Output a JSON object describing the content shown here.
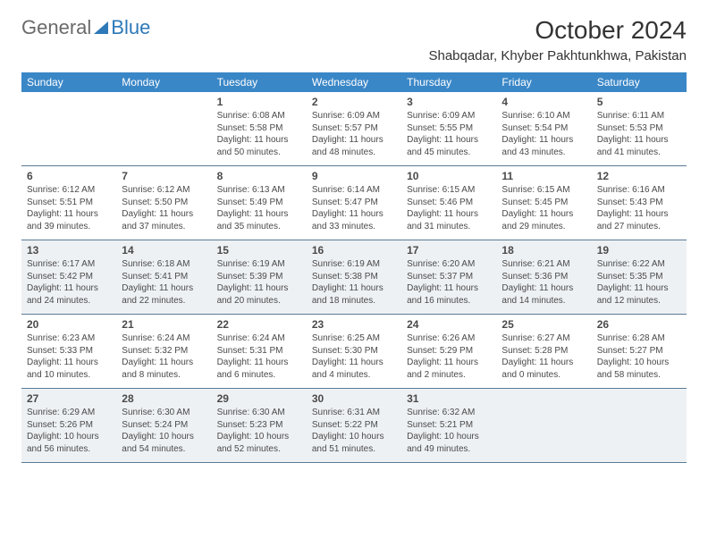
{
  "brand": {
    "part1": "General",
    "part2": "Blue"
  },
  "header": {
    "title": "October 2024",
    "location": "Shabqadar, Khyber Pakhtunkhwa, Pakistan"
  },
  "colors": {
    "header_bg": "#3a87c7",
    "header_text": "#ffffff",
    "border": "#5a7a95",
    "alt_row_bg": "#eef1f4",
    "text": "#4a4a4a",
    "brand_blue": "#2e79b8"
  },
  "day_headers": [
    "Sunday",
    "Monday",
    "Tuesday",
    "Wednesday",
    "Thursday",
    "Friday",
    "Saturday"
  ],
  "weeks": [
    {
      "alt": false,
      "cells": [
        null,
        null,
        {
          "n": "1",
          "sr": "Sunrise: 6:08 AM",
          "ss": "Sunset: 5:58 PM",
          "d1": "Daylight: 11 hours",
          "d2": "and 50 minutes."
        },
        {
          "n": "2",
          "sr": "Sunrise: 6:09 AM",
          "ss": "Sunset: 5:57 PM",
          "d1": "Daylight: 11 hours",
          "d2": "and 48 minutes."
        },
        {
          "n": "3",
          "sr": "Sunrise: 6:09 AM",
          "ss": "Sunset: 5:55 PM",
          "d1": "Daylight: 11 hours",
          "d2": "and 45 minutes."
        },
        {
          "n": "4",
          "sr": "Sunrise: 6:10 AM",
          "ss": "Sunset: 5:54 PM",
          "d1": "Daylight: 11 hours",
          "d2": "and 43 minutes."
        },
        {
          "n": "5",
          "sr": "Sunrise: 6:11 AM",
          "ss": "Sunset: 5:53 PM",
          "d1": "Daylight: 11 hours",
          "d2": "and 41 minutes."
        }
      ]
    },
    {
      "alt": false,
      "cells": [
        {
          "n": "6",
          "sr": "Sunrise: 6:12 AM",
          "ss": "Sunset: 5:51 PM",
          "d1": "Daylight: 11 hours",
          "d2": "and 39 minutes."
        },
        {
          "n": "7",
          "sr": "Sunrise: 6:12 AM",
          "ss": "Sunset: 5:50 PM",
          "d1": "Daylight: 11 hours",
          "d2": "and 37 minutes."
        },
        {
          "n": "8",
          "sr": "Sunrise: 6:13 AM",
          "ss": "Sunset: 5:49 PM",
          "d1": "Daylight: 11 hours",
          "d2": "and 35 minutes."
        },
        {
          "n": "9",
          "sr": "Sunrise: 6:14 AM",
          "ss": "Sunset: 5:47 PM",
          "d1": "Daylight: 11 hours",
          "d2": "and 33 minutes."
        },
        {
          "n": "10",
          "sr": "Sunrise: 6:15 AM",
          "ss": "Sunset: 5:46 PM",
          "d1": "Daylight: 11 hours",
          "d2": "and 31 minutes."
        },
        {
          "n": "11",
          "sr": "Sunrise: 6:15 AM",
          "ss": "Sunset: 5:45 PM",
          "d1": "Daylight: 11 hours",
          "d2": "and 29 minutes."
        },
        {
          "n": "12",
          "sr": "Sunrise: 6:16 AM",
          "ss": "Sunset: 5:43 PM",
          "d1": "Daylight: 11 hours",
          "d2": "and 27 minutes."
        }
      ]
    },
    {
      "alt": true,
      "cells": [
        {
          "n": "13",
          "sr": "Sunrise: 6:17 AM",
          "ss": "Sunset: 5:42 PM",
          "d1": "Daylight: 11 hours",
          "d2": "and 24 minutes."
        },
        {
          "n": "14",
          "sr": "Sunrise: 6:18 AM",
          "ss": "Sunset: 5:41 PM",
          "d1": "Daylight: 11 hours",
          "d2": "and 22 minutes."
        },
        {
          "n": "15",
          "sr": "Sunrise: 6:19 AM",
          "ss": "Sunset: 5:39 PM",
          "d1": "Daylight: 11 hours",
          "d2": "and 20 minutes."
        },
        {
          "n": "16",
          "sr": "Sunrise: 6:19 AM",
          "ss": "Sunset: 5:38 PM",
          "d1": "Daylight: 11 hours",
          "d2": "and 18 minutes."
        },
        {
          "n": "17",
          "sr": "Sunrise: 6:20 AM",
          "ss": "Sunset: 5:37 PM",
          "d1": "Daylight: 11 hours",
          "d2": "and 16 minutes."
        },
        {
          "n": "18",
          "sr": "Sunrise: 6:21 AM",
          "ss": "Sunset: 5:36 PM",
          "d1": "Daylight: 11 hours",
          "d2": "and 14 minutes."
        },
        {
          "n": "19",
          "sr": "Sunrise: 6:22 AM",
          "ss": "Sunset: 5:35 PM",
          "d1": "Daylight: 11 hours",
          "d2": "and 12 minutes."
        }
      ]
    },
    {
      "alt": false,
      "cells": [
        {
          "n": "20",
          "sr": "Sunrise: 6:23 AM",
          "ss": "Sunset: 5:33 PM",
          "d1": "Daylight: 11 hours",
          "d2": "and 10 minutes."
        },
        {
          "n": "21",
          "sr": "Sunrise: 6:24 AM",
          "ss": "Sunset: 5:32 PM",
          "d1": "Daylight: 11 hours",
          "d2": "and 8 minutes."
        },
        {
          "n": "22",
          "sr": "Sunrise: 6:24 AM",
          "ss": "Sunset: 5:31 PM",
          "d1": "Daylight: 11 hours",
          "d2": "and 6 minutes."
        },
        {
          "n": "23",
          "sr": "Sunrise: 6:25 AM",
          "ss": "Sunset: 5:30 PM",
          "d1": "Daylight: 11 hours",
          "d2": "and 4 minutes."
        },
        {
          "n": "24",
          "sr": "Sunrise: 6:26 AM",
          "ss": "Sunset: 5:29 PM",
          "d1": "Daylight: 11 hours",
          "d2": "and 2 minutes."
        },
        {
          "n": "25",
          "sr": "Sunrise: 6:27 AM",
          "ss": "Sunset: 5:28 PM",
          "d1": "Daylight: 11 hours",
          "d2": "and 0 minutes."
        },
        {
          "n": "26",
          "sr": "Sunrise: 6:28 AM",
          "ss": "Sunset: 5:27 PM",
          "d1": "Daylight: 10 hours",
          "d2": "and 58 minutes."
        }
      ]
    },
    {
      "alt": true,
      "cells": [
        {
          "n": "27",
          "sr": "Sunrise: 6:29 AM",
          "ss": "Sunset: 5:26 PM",
          "d1": "Daylight: 10 hours",
          "d2": "and 56 minutes."
        },
        {
          "n": "28",
          "sr": "Sunrise: 6:30 AM",
          "ss": "Sunset: 5:24 PM",
          "d1": "Daylight: 10 hours",
          "d2": "and 54 minutes."
        },
        {
          "n": "29",
          "sr": "Sunrise: 6:30 AM",
          "ss": "Sunset: 5:23 PM",
          "d1": "Daylight: 10 hours",
          "d2": "and 52 minutes."
        },
        {
          "n": "30",
          "sr": "Sunrise: 6:31 AM",
          "ss": "Sunset: 5:22 PM",
          "d1": "Daylight: 10 hours",
          "d2": "and 51 minutes."
        },
        {
          "n": "31",
          "sr": "Sunrise: 6:32 AM",
          "ss": "Sunset: 5:21 PM",
          "d1": "Daylight: 10 hours",
          "d2": "and 49 minutes."
        },
        null,
        null
      ]
    }
  ]
}
